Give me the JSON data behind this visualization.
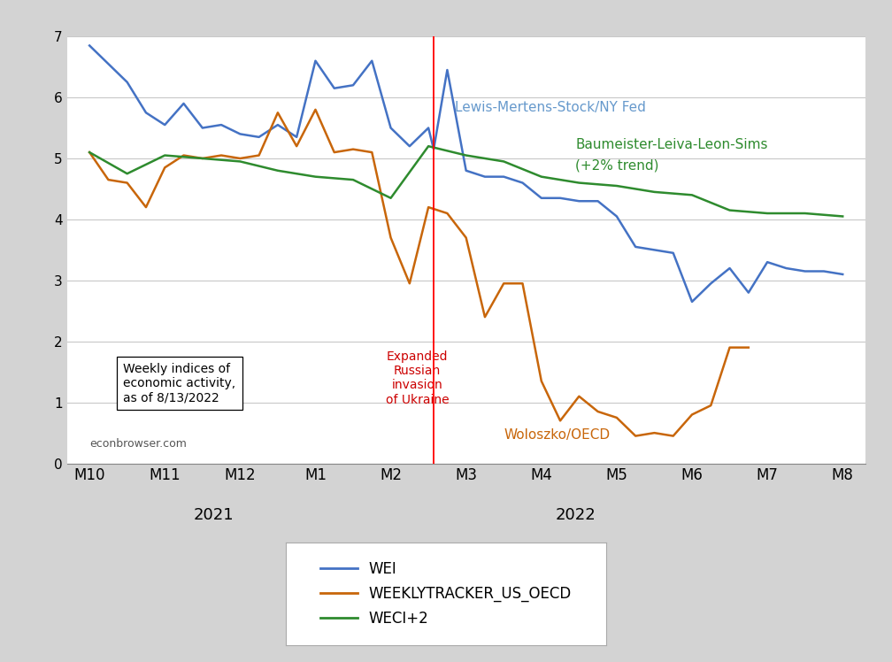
{
  "background_color": "#d3d3d3",
  "plot_bg_color": "#ffffff",
  "title": "",
  "x_labels": [
    "M10",
    "M11",
    "M12",
    "M1",
    "M2",
    "M3",
    "M4",
    "M5",
    "M6",
    "M7",
    "M8"
  ],
  "ylim": [
    0,
    7
  ],
  "yticks": [
    0,
    1,
    2,
    3,
    4,
    5,
    6,
    7
  ],
  "vline_x": 4.57,
  "vline_color": "#ff0000",
  "grid_color": "#c8c8c8",
  "wei_color": "#4472c4",
  "oecd_color": "#c8660a",
  "weci_color": "#2e8b2e",
  "wei_label": "WEI",
  "oecd_label": "WEEKLYTRACKER_US_OECD",
  "weci_label": "WECI+2",
  "annotation_wei": "Lewis-Mertens-Stock/NY Fed",
  "annotation_weci_line1": "Baumeister-Leiva-Leon-Sims",
  "annotation_weci_line2": "(+2% trend)",
  "annotation_oecd": "Woloszko/OECD",
  "annotation_invasion": "Expanded\nRussian\ninvasion\nof Ukraine",
  "box_text": "Weekly indices of\neconomic activity,\nas of 8/13/2022",
  "box_website": "econbrowser.com",
  "wei_x": [
    0,
    0.25,
    0.5,
    0.75,
    1.0,
    1.25,
    1.5,
    1.75,
    2.0,
    2.25,
    2.5,
    2.75,
    3.0,
    3.25,
    3.5,
    3.75,
    4.0,
    4.25,
    4.5,
    4.57,
    4.75,
    5.0,
    5.25,
    5.5,
    5.75,
    6.0,
    6.25,
    6.5,
    6.75,
    7.0,
    7.25,
    7.5,
    7.75,
    8.0,
    8.25,
    8.5,
    8.75,
    9.0,
    9.25,
    9.5,
    9.75,
    10.0
  ],
  "wei_y": [
    6.85,
    6.55,
    6.25,
    5.75,
    5.55,
    5.9,
    5.5,
    5.55,
    5.4,
    5.35,
    5.55,
    5.35,
    6.6,
    6.15,
    6.2,
    6.6,
    5.5,
    5.2,
    5.5,
    5.15,
    6.45,
    4.8,
    4.7,
    4.7,
    4.6,
    4.35,
    4.35,
    4.3,
    4.3,
    4.05,
    3.55,
    3.5,
    3.45,
    2.65,
    2.95,
    3.2,
    2.8,
    3.3,
    3.2,
    3.15,
    3.15,
    3.1
  ],
  "oecd_x": [
    0,
    0.25,
    0.5,
    0.75,
    1.0,
    1.25,
    1.5,
    1.75,
    2.0,
    2.25,
    2.5,
    2.75,
    3.0,
    3.25,
    3.5,
    3.75,
    4.0,
    4.25,
    4.5,
    4.75,
    5.0,
    5.25,
    5.5,
    5.75,
    6.0,
    6.25,
    6.5,
    6.75,
    7.0,
    7.25,
    7.5,
    7.75,
    8.0,
    8.25,
    8.5,
    8.75
  ],
  "oecd_y": [
    5.1,
    4.65,
    4.6,
    4.2,
    4.85,
    5.05,
    5.0,
    5.05,
    5.0,
    5.05,
    5.75,
    5.2,
    5.8,
    5.1,
    5.15,
    5.1,
    3.7,
    2.95,
    4.2,
    4.1,
    3.7,
    2.4,
    2.95,
    2.95,
    1.35,
    0.7,
    1.1,
    0.85,
    0.75,
    0.45,
    0.5,
    0.45,
    0.8,
    0.95,
    1.9,
    1.9
  ],
  "weci_x": [
    0,
    0.5,
    1.0,
    1.5,
    2.0,
    2.5,
    3.0,
    3.5,
    4.0,
    4.5,
    5.0,
    5.5,
    6.0,
    6.5,
    7.0,
    7.5,
    8.0,
    8.5,
    9.0,
    9.5,
    10.0
  ],
  "weci_y": [
    5.1,
    4.75,
    5.05,
    5.0,
    4.95,
    4.8,
    4.7,
    4.65,
    4.35,
    5.2,
    5.05,
    4.95,
    4.7,
    4.6,
    4.55,
    4.45,
    4.4,
    4.15,
    4.1,
    4.1,
    4.05
  ]
}
